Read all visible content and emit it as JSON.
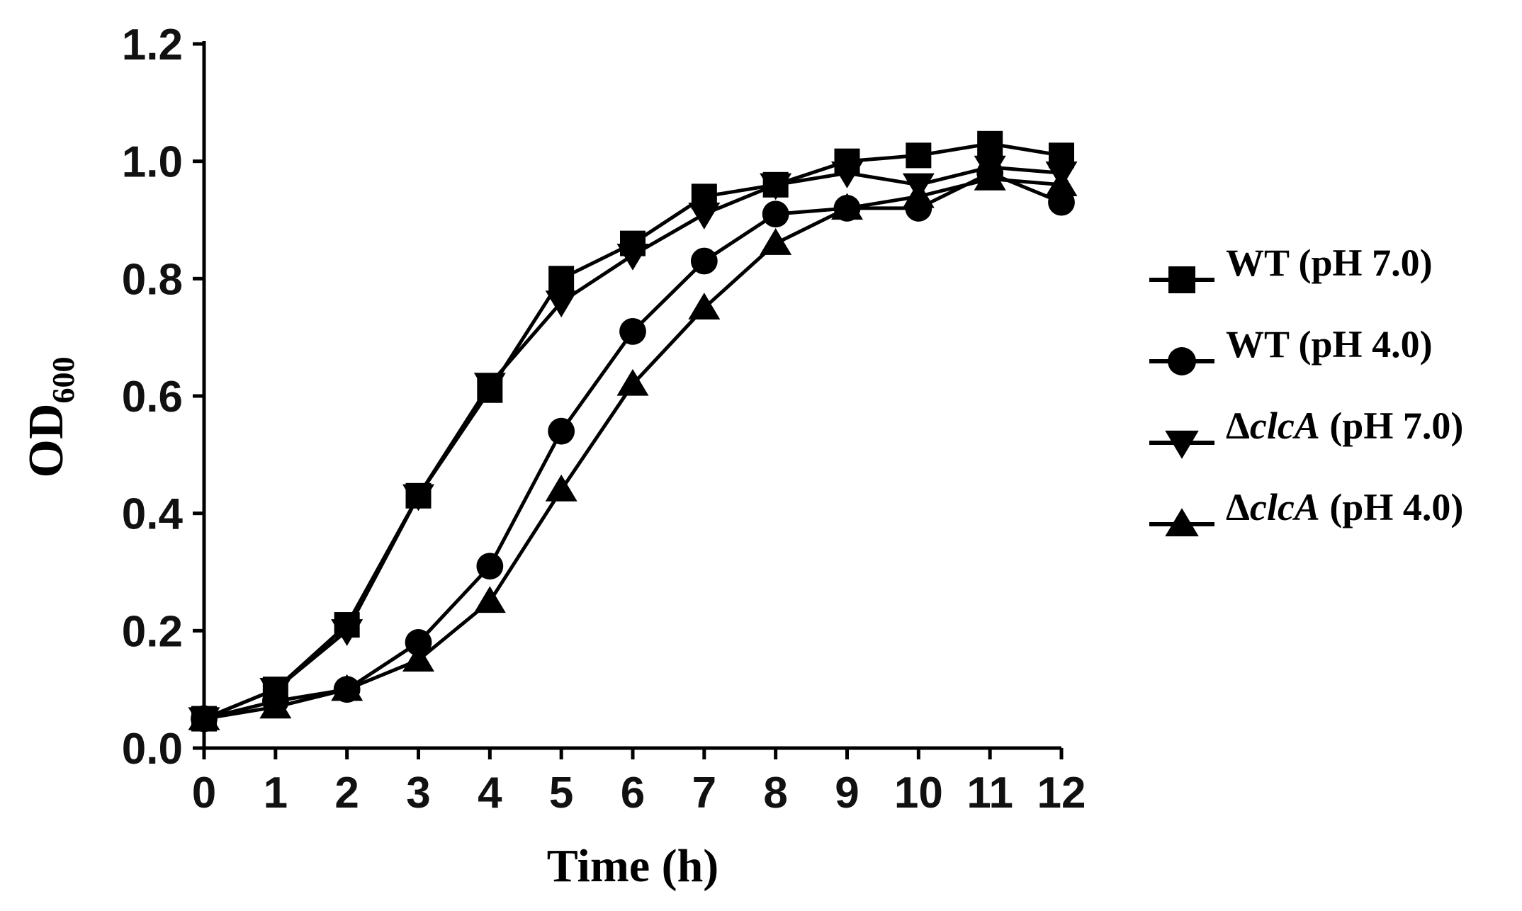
{
  "chart_data": {
    "type": "line",
    "title": "",
    "xlabel": "Time (h)",
    "ylabel": {
      "main": "OD",
      "subscript": "600"
    },
    "xlim": [
      0,
      12
    ],
    "ylim": [
      0.0,
      1.2
    ],
    "x": [
      0,
      1,
      2,
      3,
      4,
      5,
      6,
      7,
      8,
      9,
      10,
      11,
      12
    ],
    "x_tick_labels": [
      "0",
      "1",
      "2",
      "3",
      "4",
      "5",
      "6",
      "7",
      "8",
      "9",
      "10",
      "11",
      "12"
    ],
    "y_tick_labels": [
      "0.0",
      "0.2",
      "0.4",
      "0.6",
      "0.8",
      "1.0",
      "1.2"
    ],
    "y_ticks": [
      0.0,
      0.2,
      0.4,
      0.6,
      0.8,
      1.0,
      1.2
    ],
    "grid": false,
    "legend_position": "right",
    "series": [
      {
        "name": "WT (pH 7.0)",
        "legend": {
          "prefix": "WT",
          "italic": "",
          "suffix": " (pH 7.0)"
        },
        "marker": "square",
        "values": [
          0.05,
          0.1,
          0.21,
          0.43,
          0.61,
          0.8,
          0.86,
          0.94,
          0.96,
          1.0,
          1.01,
          1.03,
          1.01
        ]
      },
      {
        "name": "WT (pH 4.0)",
        "legend": {
          "prefix": "WT",
          "italic": "",
          "suffix": " (pH 4.0)"
        },
        "marker": "circle",
        "values": [
          0.05,
          0.08,
          0.1,
          0.18,
          0.31,
          0.54,
          0.71,
          0.83,
          0.91,
          0.92,
          0.92,
          0.98,
          0.93
        ]
      },
      {
        "name": "ΔclcA (pH 7.0)",
        "legend": {
          "prefix": "Δ",
          "italic": "clcA",
          "suffix": " (pH 7.0)"
        },
        "marker": "triangle-down",
        "values": [
          0.05,
          0.1,
          0.2,
          0.43,
          0.62,
          0.76,
          0.84,
          0.91,
          0.96,
          0.98,
          0.96,
          0.99,
          0.98
        ]
      },
      {
        "name": "ΔclcA (pH 4.0)",
        "legend": {
          "prefix": "Δ",
          "italic": "clcA",
          "suffix": " (pH 4.0)"
        },
        "marker": "triangle-up",
        "values": [
          0.05,
          0.07,
          0.1,
          0.15,
          0.25,
          0.44,
          0.62,
          0.75,
          0.86,
          0.92,
          0.94,
          0.97,
          0.96
        ]
      }
    ]
  }
}
